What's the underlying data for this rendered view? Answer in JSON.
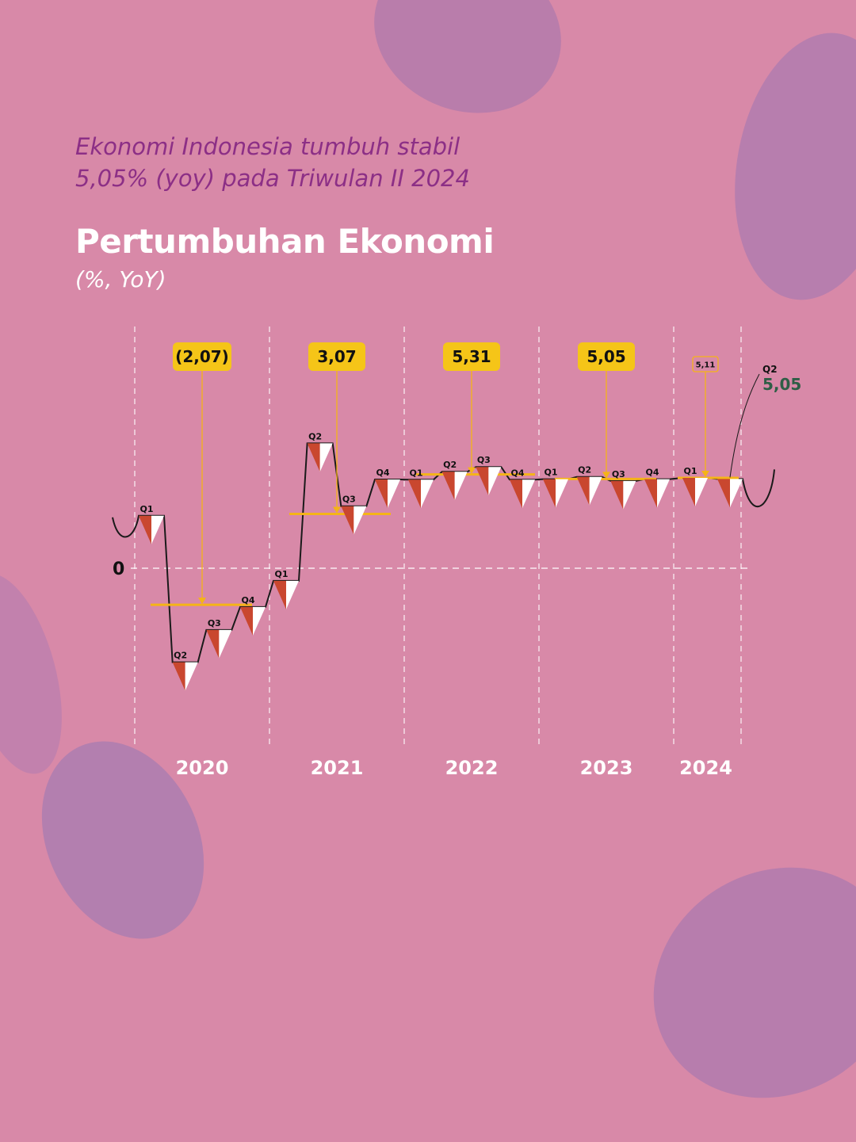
{
  "header": {
    "subtitle_line1": "Ekonomi Indonesia tumbuh stabil",
    "subtitle_line2": "5,05% (yoy) pada Triwulan II 2024",
    "title": "Pertumbuhan Ekonomi",
    "unit": "(%, YoY)"
  },
  "colors": {
    "background": "#d889a8",
    "brush_stroke": "#9b6aa8",
    "triangle_red": "#c9472f",
    "triangle_white": "#ffffff",
    "annual_line": "#f5b417",
    "label_box": "#f5c518",
    "latest_value": "#2e5e46"
  },
  "chart_data": {
    "type": "line",
    "zero_label": "0",
    "years": [
      "2020",
      "2021",
      "2022",
      "2023",
      "2024"
    ],
    "quarters": [
      {
        "label": "Q1",
        "year": "2020",
        "value": 2.97
      },
      {
        "label": "Q2",
        "year": "2020",
        "value": -5.32
      },
      {
        "label": "Q3",
        "year": "2020",
        "value": -3.49
      },
      {
        "label": "Q4",
        "year": "2020",
        "value": -2.19
      },
      {
        "label": "Q1",
        "year": "2021",
        "value": -0.71
      },
      {
        "label": "Q2",
        "year": "2021",
        "value": 7.07
      },
      {
        "label": "Q3",
        "year": "2021",
        "value": 3.51
      },
      {
        "label": "Q4",
        "year": "2021",
        "value": 5.02
      },
      {
        "label": "Q1",
        "year": "2022",
        "value": 5.01
      },
      {
        "label": "Q2",
        "year": "2022",
        "value": 5.46
      },
      {
        "label": "Q3",
        "year": "2022",
        "value": 5.73
      },
      {
        "label": "Q4",
        "year": "2022",
        "value": 5.01
      },
      {
        "label": "Q1",
        "year": "2023",
        "value": 5.04
      },
      {
        "label": "Q2",
        "year": "2023",
        "value": 5.17
      },
      {
        "label": "Q3",
        "year": "2023",
        "value": 4.94
      },
      {
        "label": "Q4",
        "year": "2023",
        "value": 5.04
      },
      {
        "label": "Q1",
        "year": "2024",
        "value": 5.11
      },
      {
        "label": "Q2",
        "year": "2024",
        "value": 5.05
      }
    ],
    "annual": [
      {
        "year": "2020",
        "label": "(2,07)",
        "value": -2.07
      },
      {
        "year": "2021",
        "label": "3,07",
        "value": 3.07
      },
      {
        "year": "2022",
        "label": "5,31",
        "value": 5.31
      },
      {
        "year": "2023",
        "label": "5,05",
        "value": 5.05
      },
      {
        "year": "2024",
        "label": "5,11",
        "value": 5.11
      }
    ],
    "latest": {
      "label": "Q2",
      "value_label": "5,05"
    },
    "ylim": [
      -6.5,
      8.5
    ],
    "grid": "dashed vertical year separators, dashed zero line"
  }
}
